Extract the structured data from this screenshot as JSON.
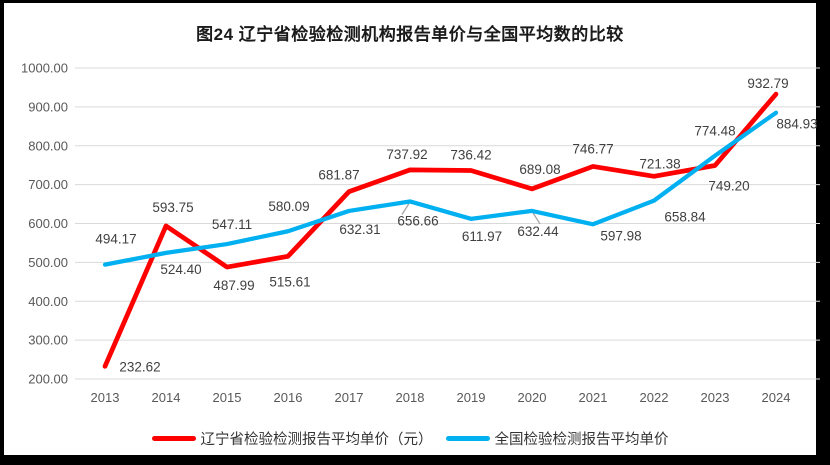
{
  "title": "图24 辽宁省检验检测机构报告单价与全国平均数的比较",
  "colors": {
    "liaoning_line": "#ff0000",
    "national_line": "#00b0f0",
    "gridline": "#d9d9d9",
    "axis_text": "#595959",
    "data_label_text": "#404040",
    "leader_line": "#a6a6a6",
    "frame": "#000000",
    "background": "#ffffff"
  },
  "chart_data": {
    "type": "line",
    "title": "图24 辽宁省检验检测机构报告单价与全国平均数的比较",
    "categories": [
      "2013",
      "2014",
      "2015",
      "2016",
      "2017",
      "2018",
      "2019",
      "2020",
      "2021",
      "2022",
      "2023",
      "2024"
    ],
    "series": [
      {
        "name": "辽宁省检验检测报告平均单价（元）",
        "color": "#ff0000",
        "values": [
          232.62,
          593.75,
          487.99,
          515.61,
          681.87,
          737.92,
          736.42,
          689.08,
          746.77,
          721.38,
          749.2,
          932.79
        ]
      },
      {
        "name": "全国检验检测报告平均单价",
        "color": "#00b0f0",
        "values": [
          494.17,
          524.4,
          547.11,
          580.09,
          632.31,
          656.66,
          611.97,
          632.44,
          597.98,
          658.84,
          774.48,
          884.93
        ]
      }
    ],
    "ylim": [
      200,
      1000
    ],
    "ytick_step": 100,
    "ytick_labels": [
      "200.00",
      "300.00",
      "400.00",
      "500.00",
      "600.00",
      "700.00",
      "800.00",
      "900.00",
      "1000.00"
    ],
    "grid": true,
    "data_labels": true,
    "data_label_format": "2dp",
    "legend_position": "bottom"
  }
}
